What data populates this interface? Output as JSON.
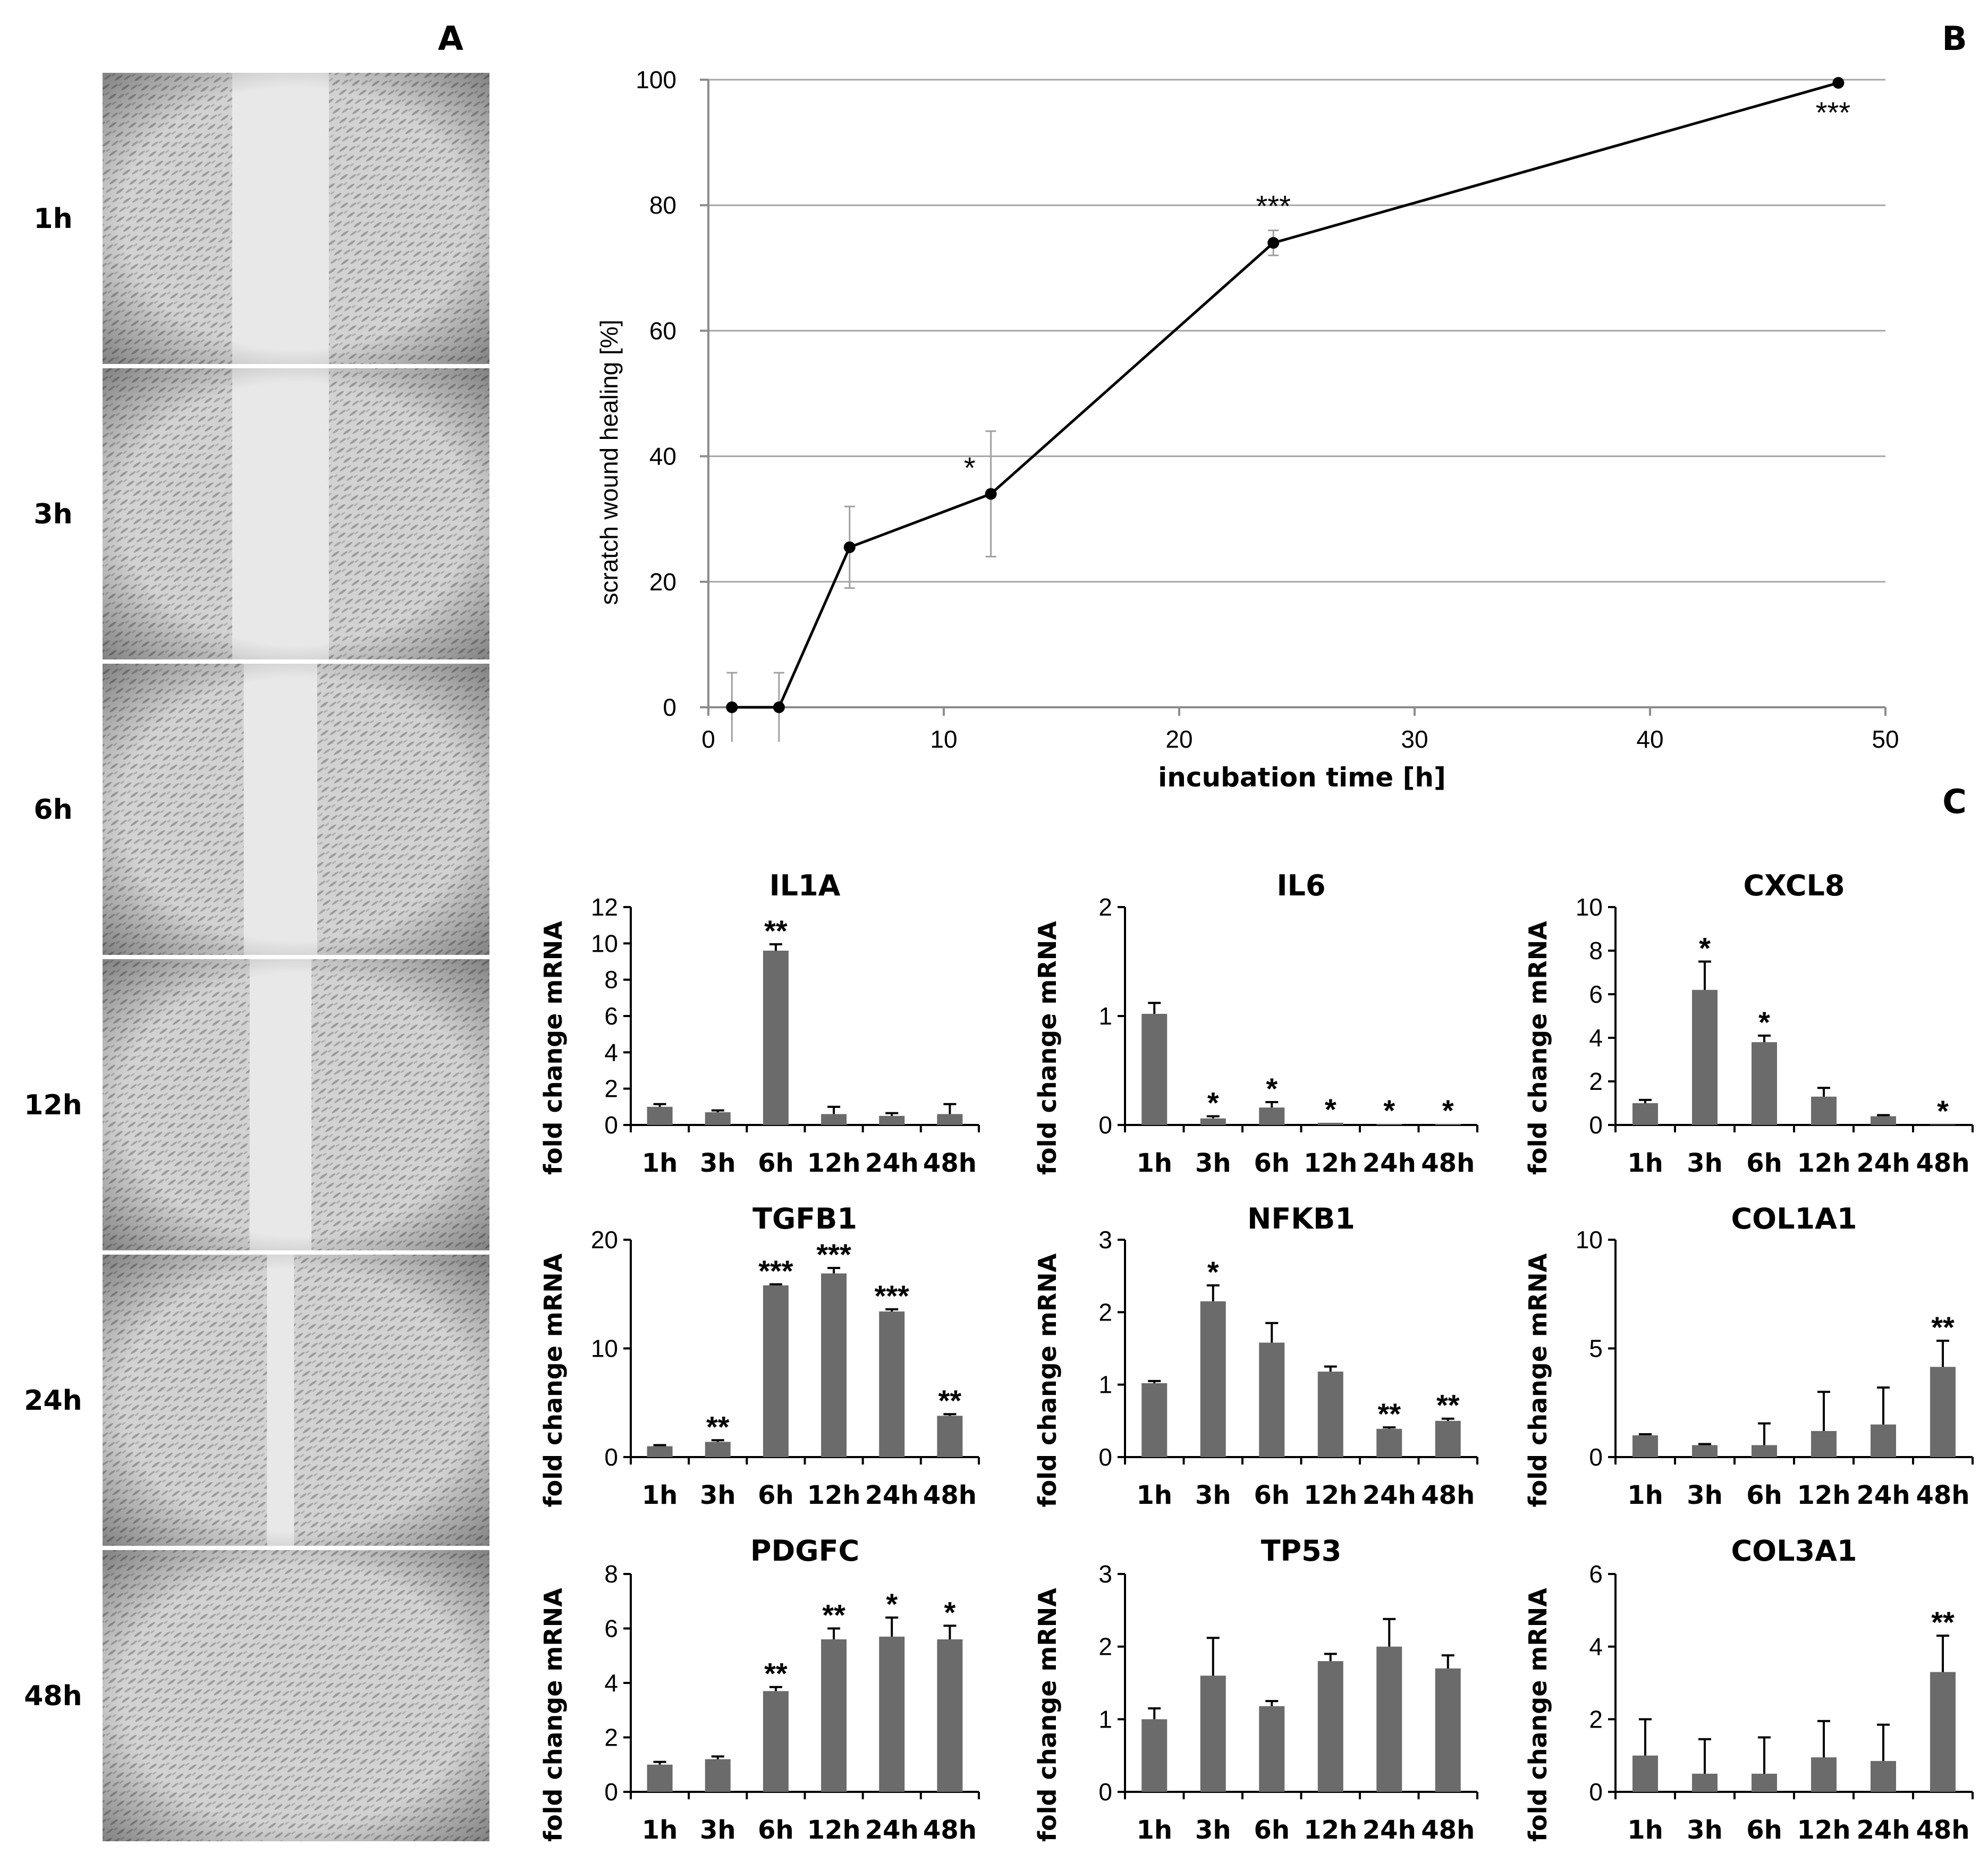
{
  "panels": {
    "a": "A",
    "b": "B",
    "c": "C"
  },
  "colors": {
    "bar": "#6b6b6b",
    "line": "#000000",
    "grid": "#a6a6a6",
    "micrograph_bg": "#d6d6d6",
    "gap": "#e8e8e8",
    "cells": "#8f8f8f"
  },
  "micrographs": [
    {
      "label": "1h",
      "gap_percent_open": 0.25
    },
    {
      "label": "3h",
      "gap_percent_open": 0.25
    },
    {
      "label": "6h",
      "gap_percent_open": 0.19
    },
    {
      "label": "12h",
      "gap_percent_open": 0.16
    },
    {
      "label": "24h",
      "gap_percent_open": 0.07
    },
    {
      "label": "48h",
      "gap_percent_open": 0.0
    }
  ],
  "chart_data": [
    {
      "id": "wound",
      "type": "line",
      "title": "",
      "xlabel": "incubation time [h]",
      "ylabel": "scratch wound healing [%]",
      "xlim": [
        0,
        50
      ],
      "ylim": [
        0,
        100
      ],
      "xticks": [
        0,
        10,
        20,
        30,
        40,
        50
      ],
      "yticks": [
        0,
        20,
        40,
        60,
        80,
        100
      ],
      "grid": true,
      "series": [
        {
          "name": "healing",
          "x": [
            1,
            3,
            6,
            12,
            24,
            48
          ],
          "y": [
            0,
            0,
            25.5,
            34,
            74,
            99.5
          ],
          "err": [
            5.5,
            5.5,
            6.5,
            10,
            2,
            0
          ],
          "sig": [
            "",
            "",
            "",
            "*",
            "***",
            "***"
          ]
        }
      ]
    },
    {
      "id": "IL1A",
      "type": "bar",
      "title": "IL1A",
      "ylabel": "fold change mRNA",
      "categories": [
        "1h",
        "3h",
        "6h",
        "12h",
        "24h",
        "48h"
      ],
      "ylim": [
        0,
        12
      ],
      "yticks": [
        0,
        2,
        4,
        6,
        8,
        10,
        12
      ],
      "values": [
        1.0,
        0.7,
        9.6,
        0.6,
        0.5,
        0.6
      ],
      "errors": [
        0.15,
        0.1,
        0.35,
        0.4,
        0.15,
        0.55
      ],
      "sig": [
        "",
        "",
        "**",
        "",
        "",
        ""
      ]
    },
    {
      "id": "IL6",
      "type": "bar",
      "title": "IL6",
      "ylabel": "fold change mRNA",
      "categories": [
        "1h",
        "3h",
        "6h",
        "12h",
        "24h",
        "48h"
      ],
      "ylim": [
        0,
        2
      ],
      "yticks": [
        0,
        1,
        2
      ],
      "values": [
        1.02,
        0.06,
        0.16,
        0.02,
        0.01,
        0.01
      ],
      "errors": [
        0.1,
        0.02,
        0.05,
        0.0,
        0.0,
        0.0
      ],
      "sig": [
        "",
        "*",
        "*",
        "*",
        "*",
        "*"
      ]
    },
    {
      "id": "CXCL8",
      "type": "bar",
      "title": "CXCL8",
      "ylabel": "fold change mRNA",
      "categories": [
        "1h",
        "3h",
        "6h",
        "12h",
        "24h",
        "48h"
      ],
      "ylim": [
        0,
        10
      ],
      "yticks": [
        0,
        2,
        4,
        6,
        8,
        10
      ],
      "values": [
        1.0,
        6.2,
        3.8,
        1.3,
        0.4,
        0.02
      ],
      "errors": [
        0.15,
        1.3,
        0.3,
        0.4,
        0.05,
        0.0
      ],
      "sig": [
        "",
        "*",
        "*",
        "",
        "",
        "*"
      ]
    },
    {
      "id": "TGFB1",
      "type": "bar",
      "title": "TGFB1",
      "ylabel": "fold change mRNA",
      "categories": [
        "1h",
        "3h",
        "6h",
        "12h",
        "24h",
        "48h"
      ],
      "ylim": [
        0,
        20
      ],
      "yticks": [
        0,
        10,
        20
      ],
      "values": [
        1.0,
        1.4,
        15.8,
        16.9,
        13.4,
        3.8
      ],
      "errors": [
        0.1,
        0.15,
        0.1,
        0.5,
        0.2,
        0.15
      ],
      "sig": [
        "",
        "**",
        "***",
        "***",
        "***",
        "**"
      ]
    },
    {
      "id": "NFKB1",
      "type": "bar",
      "title": "NFKB1",
      "ylabel": "fold change mRNA",
      "categories": [
        "1h",
        "3h",
        "6h",
        "12h",
        "24h",
        "48h"
      ],
      "ylim": [
        0,
        3
      ],
      "yticks": [
        0,
        1,
        2,
        3
      ],
      "values": [
        1.02,
        2.15,
        1.58,
        1.18,
        0.39,
        0.5
      ],
      "errors": [
        0.03,
        0.22,
        0.27,
        0.07,
        0.02,
        0.03
      ],
      "sig": [
        "",
        "*",
        "",
        "",
        "**",
        "**"
      ]
    },
    {
      "id": "COL1A1",
      "type": "bar",
      "title": "COL1A1",
      "ylabel": "fold change mRNA",
      "categories": [
        "1h",
        "3h",
        "6h",
        "12h",
        "24h",
        "48h"
      ],
      "ylim": [
        0,
        10
      ],
      "yticks": [
        0,
        5,
        10
      ],
      "values": [
        1.0,
        0.55,
        0.55,
        1.2,
        1.5,
        4.15
      ],
      "errors": [
        0.05,
        0.05,
        1.0,
        1.8,
        1.7,
        1.2
      ],
      "sig": [
        "",
        "",
        "",
        "",
        "",
        "**"
      ]
    },
    {
      "id": "PDGFC",
      "type": "bar",
      "title": "PDGFC",
      "ylabel": "fold change mRNA",
      "categories": [
        "1h",
        "3h",
        "6h",
        "12h",
        "24h",
        "48h"
      ],
      "ylim": [
        0,
        8
      ],
      "yticks": [
        0,
        2,
        4,
        6,
        8
      ],
      "values": [
        1.0,
        1.2,
        3.7,
        5.6,
        5.7,
        5.6
      ],
      "errors": [
        0.1,
        0.1,
        0.15,
        0.4,
        0.7,
        0.5
      ],
      "sig": [
        "",
        "",
        "**",
        "**",
        "*",
        "*"
      ]
    },
    {
      "id": "TP53",
      "type": "bar",
      "title": "TP53",
      "ylabel": "fold change mRNA",
      "categories": [
        "1h",
        "3h",
        "6h",
        "12h",
        "24h",
        "48h"
      ],
      "ylim": [
        0,
        3
      ],
      "yticks": [
        0,
        1,
        2,
        3
      ],
      "values": [
        1.0,
        1.6,
        1.18,
        1.8,
        2.0,
        1.7
      ],
      "errors": [
        0.15,
        0.52,
        0.07,
        0.1,
        0.38,
        0.18
      ],
      "sig": [
        "",
        "",
        "",
        "",
        "",
        ""
      ]
    },
    {
      "id": "COL3A1",
      "type": "bar",
      "title": "COL3A1",
      "ylabel": "fold change mRNA",
      "categories": [
        "1h",
        "3h",
        "6h",
        "12h",
        "24h",
        "48h"
      ],
      "ylim": [
        0,
        6
      ],
      "yticks": [
        0,
        2,
        4,
        6
      ],
      "values": [
        1.0,
        0.5,
        0.5,
        0.95,
        0.85,
        3.3
      ],
      "errors": [
        1.0,
        0.95,
        1.0,
        1.0,
        1.0,
        1.0
      ],
      "sig": [
        "",
        "",
        "",
        "",
        "",
        "**"
      ]
    }
  ]
}
